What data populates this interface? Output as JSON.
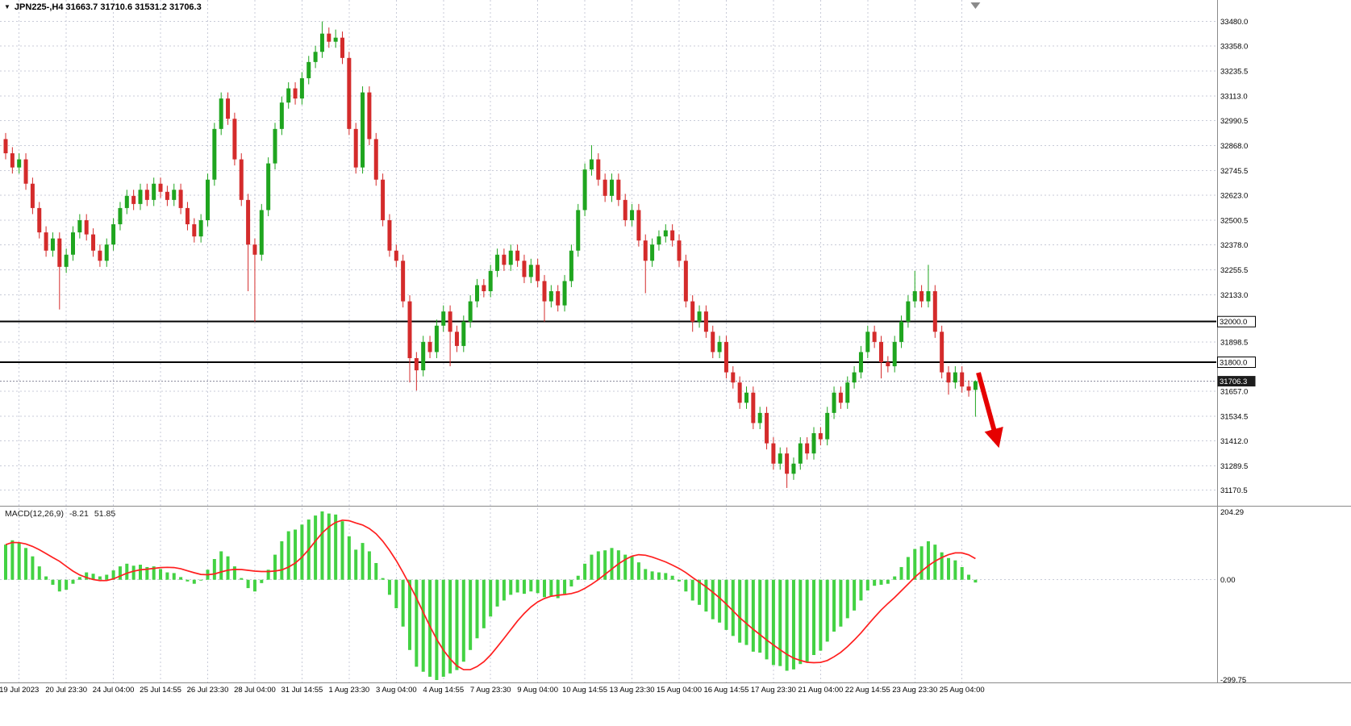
{
  "header": {
    "title_text": "JPN225-,H4 31663.7 31710.6 31531.2 31706.3",
    "dropdown_glyph": "▼"
  },
  "chart_data": {
    "type": "candlestick",
    "symbol": "JPN225-",
    "timeframe": "H4",
    "last_candle": {
      "open": "31663.7",
      "high": "31710.6",
      "low": "31531.2",
      "close": "31706.3"
    },
    "price_axis": {
      "max": 33530,
      "min": 31120,
      "ticks": [
        "33480.0",
        "33358.0",
        "33235.5",
        "33113.0",
        "32990.5",
        "32868.0",
        "32745.5",
        "32623.0",
        "32500.5",
        "32378.0",
        "32255.5",
        "32133.0",
        "31898.5",
        "31657.0",
        "31534.5",
        "31412.0",
        "31289.5",
        "31170.5"
      ]
    },
    "time_labels": [
      "19 Jul 2023",
      "20 Jul 23:30",
      "24 Jul 04:00",
      "25 Jul 14:55",
      "26 Jul 23:30",
      "28 Jul 04:00",
      "31 Jul 14:55",
      "1 Aug 23:30",
      "3 Aug 04:00",
      "4 Aug 14:55",
      "7 Aug 23:30",
      "9 Aug 04:00",
      "10 Aug 14:55",
      "13 Aug 23:30",
      "15 Aug 04:00",
      "16 Aug 14:55",
      "17 Aug 23:30",
      "21 Aug 04:00",
      "22 Aug 14:55",
      "23 Aug 23:30",
      "25 Aug 04:00"
    ],
    "first_label_index": 2,
    "label_step": 7,
    "hlines": [
      {
        "price": 32000.0,
        "label": "32000.0"
      },
      {
        "price": 31800.0,
        "label": "31800.0"
      }
    ],
    "current_price": 31706.3,
    "current_price_label": "31706.3",
    "candles": [
      [
        32900,
        32930,
        32800,
        32830
      ],
      [
        32830,
        32860,
        32730,
        32760
      ],
      [
        32760,
        32830,
        32730,
        32800
      ],
      [
        32800,
        32830,
        32650,
        32680
      ],
      [
        32680,
        32710,
        32530,
        32560
      ],
      [
        32560,
        32590,
        32410,
        32440
      ],
      [
        32440,
        32470,
        32320,
        32350
      ],
      [
        32350,
        32440,
        32320,
        32410
      ],
      [
        32410,
        32440,
        32060,
        32270
      ],
      [
        32270,
        32360,
        32240,
        32330
      ],
      [
        32330,
        32470,
        32300,
        32440
      ],
      [
        32440,
        32530,
        32410,
        32500
      ],
      [
        32500,
        32530,
        32400,
        32430
      ],
      [
        32430,
        32460,
        32320,
        32350
      ],
      [
        32350,
        32380,
        32270,
        32300
      ],
      [
        32300,
        32410,
        32270,
        32380
      ],
      [
        32380,
        32510,
        32350,
        32480
      ],
      [
        32480,
        32590,
        32450,
        32560
      ],
      [
        32560,
        32650,
        32530,
        32620
      ],
      [
        32620,
        32650,
        32550,
        32580
      ],
      [
        32580,
        32680,
        32550,
        32650
      ],
      [
        32650,
        32680,
        32570,
        32600
      ],
      [
        32600,
        32710,
        32570,
        32680
      ],
      [
        32680,
        32710,
        32610,
        32640
      ],
      [
        32640,
        32670,
        32570,
        32600
      ],
      [
        32600,
        32680,
        32570,
        32650
      ],
      [
        32650,
        32680,
        32530,
        32560
      ],
      [
        32560,
        32590,
        32450,
        32480
      ],
      [
        32480,
        32510,
        32390,
        32420
      ],
      [
        32420,
        32530,
        32390,
        32500
      ],
      [
        32500,
        32730,
        32470,
        32700
      ],
      [
        32700,
        32980,
        32670,
        32950
      ],
      [
        32950,
        33130,
        32920,
        33100
      ],
      [
        33100,
        33130,
        32970,
        33000
      ],
      [
        33000,
        33030,
        32770,
        32800
      ],
      [
        32800,
        32830,
        32570,
        32600
      ],
      [
        32600,
        32630,
        32150,
        32380
      ],
      [
        32380,
        32410,
        32000,
        32330
      ],
      [
        32330,
        32580,
        32300,
        32550
      ],
      [
        32550,
        32810,
        32520,
        32780
      ],
      [
        32780,
        32980,
        32750,
        32950
      ],
      [
        32950,
        33110,
        32920,
        33080
      ],
      [
        33080,
        33180,
        33050,
        33150
      ],
      [
        33150,
        33180,
        33070,
        33100
      ],
      [
        33100,
        33230,
        33070,
        33200
      ],
      [
        33200,
        33310,
        33170,
        33280
      ],
      [
        33280,
        33360,
        33250,
        33330
      ],
      [
        33330,
        33480,
        33300,
        33420
      ],
      [
        33420,
        33450,
        33350,
        33380
      ],
      [
        33380,
        33440,
        33350,
        33400
      ],
      [
        33400,
        33430,
        33270,
        33300
      ],
      [
        33300,
        33330,
        32920,
        32950
      ],
      [
        32950,
        32980,
        32730,
        32760
      ],
      [
        32760,
        33160,
        32730,
        33130
      ],
      [
        33130,
        33160,
        32870,
        32900
      ],
      [
        32900,
        32930,
        32670,
        32700
      ],
      [
        32700,
        32730,
        32470,
        32500
      ],
      [
        32500,
        32530,
        32320,
        32350
      ],
      [
        32350,
        32380,
        32270,
        32300
      ],
      [
        32300,
        32330,
        32070,
        32100
      ],
      [
        32100,
        32130,
        31700,
        31820
      ],
      [
        31820,
        31850,
        31660,
        31760
      ],
      [
        31760,
        31930,
        31730,
        31900
      ],
      [
        31900,
        31930,
        31820,
        31850
      ],
      [
        31850,
        32010,
        31820,
        31980
      ],
      [
        31980,
        32080,
        31950,
        32050
      ],
      [
        32050,
        32080,
        31780,
        31950
      ],
      [
        31950,
        31980,
        31850,
        31880
      ],
      [
        31880,
        32030,
        31850,
        32000
      ],
      [
        32000,
        32130,
        31970,
        32100
      ],
      [
        32100,
        32210,
        32070,
        32180
      ],
      [
        32180,
        32210,
        32120,
        32150
      ],
      [
        32150,
        32280,
        32120,
        32250
      ],
      [
        32250,
        32360,
        32220,
        32330
      ],
      [
        32330,
        32360,
        32250,
        32280
      ],
      [
        32280,
        32380,
        32250,
        32350
      ],
      [
        32350,
        32380,
        32270,
        32300
      ],
      [
        32300,
        32330,
        32190,
        32220
      ],
      [
        32220,
        32310,
        32190,
        32280
      ],
      [
        32280,
        32310,
        32170,
        32200
      ],
      [
        32200,
        32230,
        32000,
        32100
      ],
      [
        32100,
        32180,
        32070,
        32150
      ],
      [
        32150,
        32180,
        32050,
        32080
      ],
      [
        32080,
        32230,
        32050,
        32200
      ],
      [
        32200,
        32380,
        32170,
        32350
      ],
      [
        32350,
        32580,
        32320,
        32550
      ],
      [
        32550,
        32780,
        32520,
        32750
      ],
      [
        32750,
        32870,
        32720,
        32800
      ],
      [
        32800,
        32830,
        32670,
        32700
      ],
      [
        32700,
        32730,
        32590,
        32620
      ],
      [
        32620,
        32730,
        32590,
        32700
      ],
      [
        32700,
        32730,
        32570,
        32600
      ],
      [
        32600,
        32630,
        32470,
        32500
      ],
      [
        32500,
        32580,
        32470,
        32550
      ],
      [
        32550,
        32580,
        32370,
        32400
      ],
      [
        32400,
        32430,
        32140,
        32300
      ],
      [
        32300,
        32410,
        32270,
        32380
      ],
      [
        32380,
        32450,
        32350,
        32420
      ],
      [
        32420,
        32480,
        32390,
        32450
      ],
      [
        32450,
        32480,
        32370,
        32400
      ],
      [
        32400,
        32430,
        32270,
        32300
      ],
      [
        32300,
        32330,
        32070,
        32100
      ],
      [
        32100,
        32130,
        31950,
        32000
      ],
      [
        32000,
        32080,
        31970,
        32050
      ],
      [
        32050,
        32080,
        31920,
        31950
      ],
      [
        31950,
        31980,
        31820,
        31850
      ],
      [
        31850,
        31930,
        31820,
        31900
      ],
      [
        31900,
        31930,
        31720,
        31750
      ],
      [
        31750,
        31780,
        31670,
        31700
      ],
      [
        31700,
        31730,
        31570,
        31600
      ],
      [
        31600,
        31680,
        31570,
        31650
      ],
      [
        31650,
        31680,
        31470,
        31500
      ],
      [
        31500,
        31580,
        31470,
        31550
      ],
      [
        31550,
        31580,
        31370,
        31400
      ],
      [
        31400,
        31430,
        31270,
        31300
      ],
      [
        31300,
        31380,
        31270,
        31350
      ],
      [
        31350,
        31380,
        31180,
        31250
      ],
      [
        31250,
        31330,
        31220,
        31300
      ],
      [
        31300,
        31430,
        31270,
        31400
      ],
      [
        31400,
        31430,
        31320,
        31350
      ],
      [
        31350,
        31480,
        31320,
        31450
      ],
      [
        31450,
        31480,
        31390,
        31420
      ],
      [
        31420,
        31580,
        31390,
        31550
      ],
      [
        31550,
        31680,
        31520,
        31650
      ],
      [
        31650,
        31680,
        31570,
        31600
      ],
      [
        31600,
        31730,
        31570,
        31700
      ],
      [
        31700,
        31780,
        31670,
        31750
      ],
      [
        31750,
        31880,
        31720,
        31850
      ],
      [
        31850,
        31980,
        31820,
        31950
      ],
      [
        31950,
        31980,
        31870,
        31900
      ],
      [
        31900,
        31930,
        31720,
        31800
      ],
      [
        31800,
        31830,
        31750,
        31780
      ],
      [
        31780,
        31930,
        31750,
        31900
      ],
      [
        31900,
        32030,
        31870,
        32000
      ],
      [
        32000,
        32130,
        31970,
        32100
      ],
      [
        32100,
        32250,
        32070,
        32150
      ],
      [
        32150,
        32180,
        32070,
        32100
      ],
      [
        32100,
        32280,
        32070,
        32150
      ],
      [
        32150,
        32180,
        31920,
        31950
      ],
      [
        31950,
        31980,
        31720,
        31750
      ],
      [
        31750,
        31780,
        31640,
        31700
      ],
      [
        31700,
        31780,
        31670,
        31750
      ],
      [
        31750,
        31780,
        31650,
        31680
      ],
      [
        31680,
        31710,
        31630,
        31660
      ],
      [
        31663.7,
        31710.6,
        31531.2,
        31706.3
      ]
    ],
    "macd": {
      "label": "MACD(12,26,9)",
      "hist_value": "-8.21",
      "signal_value": "51.85",
      "signal_period": 9,
      "scale": {
        "max": 204.29,
        "min": -299.75,
        "max_label": "204.29",
        "zero_label": "0.00",
        "min_label": "-299.75"
      },
      "histogram": [
        105,
        118,
        110,
        95,
        70,
        40,
        10,
        -15,
        -35,
        -30,
        -12,
        8,
        22,
        18,
        10,
        15,
        28,
        40,
        48,
        42,
        45,
        38,
        40,
        32,
        22,
        20,
        8,
        -5,
        -12,
        0,
        30,
        62,
        85,
        70,
        40,
        5,
        -25,
        -35,
        -10,
        30,
        75,
        115,
        145,
        150,
        165,
        180,
        192,
        204.29,
        198,
        195,
        175,
        130,
        90,
        110,
        85,
        50,
        5,
        -45,
        -85,
        -140,
        -210,
        -260,
        -275,
        -290,
        -299.75,
        -290,
        -280,
        -270,
        -245,
        -210,
        -175,
        -145,
        -110,
        -80,
        -62,
        -45,
        -38,
        -42,
        -35,
        -40,
        -52,
        -48,
        -55,
        -42,
        -20,
        12,
        48,
        75,
        85,
        88,
        95,
        88,
        75,
        70,
        52,
        32,
        25,
        22,
        20,
        12,
        -5,
        -35,
        -62,
        -75,
        -95,
        -118,
        -128,
        -150,
        -168,
        -188,
        -195,
        -215,
        -218,
        -238,
        -255,
        -258,
        -272,
        -268,
        -252,
        -245,
        -225,
        -212,
        -185,
        -155,
        -140,
        -115,
        -92,
        -62,
        -32,
        -18,
        -15,
        -12,
        10,
        38,
        68,
        92,
        100,
        115,
        105,
        82,
        65,
        58,
        38,
        15,
        -8.21
      ]
    },
    "annotation_arrow": {
      "from": [
        1213,
        462
      ],
      "to": [
        1236,
        546
      ]
    },
    "colors": {
      "bull": "#1fa51f",
      "bear": "#d42b2b",
      "macd_hist": "#43d243",
      "macd_signal": "#ff1f1f",
      "grid": "#c8cbd8",
      "hline": "#000000",
      "bid_line": "#8c8c9e",
      "arrow": "#e60000",
      "separator": "#8a8a8a",
      "axis_text": "#000000",
      "tag_dark_bg": "#1c1c1c"
    }
  }
}
